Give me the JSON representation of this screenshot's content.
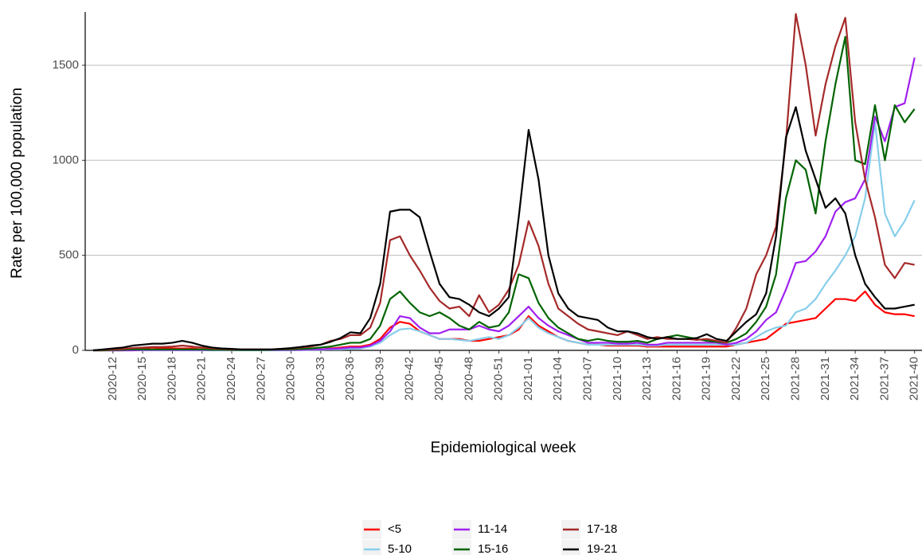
{
  "chart_data": {
    "type": "line",
    "x_label": "Epidemiological week",
    "y_label": "Rate per 100,000 population",
    "categories": [
      null,
      null,
      "2020-12",
      null,
      null,
      "2020-15",
      null,
      null,
      "2020-18",
      null,
      null,
      "2020-21",
      null,
      null,
      "2020-24",
      null,
      null,
      "2020-27",
      null,
      null,
      "2020-30",
      null,
      null,
      "2020-33",
      null,
      null,
      "2020-36",
      null,
      null,
      "2020-39",
      null,
      null,
      "2020-42",
      null,
      null,
      "2020-45",
      null,
      null,
      "2020-48",
      null,
      null,
      "2020-51",
      null,
      null,
      "2021-01",
      null,
      null,
      "2021-04",
      null,
      null,
      "2021-07",
      null,
      null,
      "2021-10",
      null,
      null,
      "2021-13",
      null,
      null,
      "2021-16",
      null,
      null,
      "2021-19",
      null,
      null,
      "2021-22",
      null,
      null,
      "2021-25",
      null,
      null,
      "2021-28",
      null,
      null,
      "2021-31",
      null,
      null,
      "2021-34",
      null,
      null,
      "2021-37",
      null,
      null,
      "2021-40"
    ],
    "ylim": [
      0,
      1770
    ],
    "yticks": [
      0,
      500,
      1000,
      1500
    ],
    "grid": true,
    "legend": "bottom",
    "series": [
      {
        "name": "<5",
        "color": "#ff0000",
        "values": [
          0,
          0,
          0,
          0,
          5,
          10,
          15,
          10,
          10,
          10,
          10,
          5,
          5,
          3,
          2,
          2,
          2,
          2,
          2,
          2,
          2,
          3,
          5,
          5,
          10,
          15,
          20,
          20,
          30,
          60,
          120,
          150,
          140,
          100,
          80,
          60,
          60,
          60,
          50,
          50,
          60,
          70,
          80,
          110,
          180,
          130,
          100,
          70,
          50,
          40,
          30,
          30,
          25,
          25,
          25,
          25,
          20,
          20,
          20,
          20,
          20,
          20,
          20,
          20,
          20,
          30,
          40,
          50,
          60,
          100,
          140,
          150,
          160,
          170,
          220,
          270,
          270,
          260,
          310,
          240,
          200,
          190,
          190,
          180
        ]
      },
      {
        "name": "5-10",
        "color": "#87ceeb",
        "values": [
          0,
          0,
          0,
          0,
          0,
          0,
          0,
          0,
          0,
          0,
          0,
          0,
          0,
          0,
          0,
          0,
          0,
          0,
          0,
          0,
          0,
          2,
          3,
          3,
          5,
          5,
          8,
          10,
          20,
          40,
          80,
          110,
          115,
          100,
          80,
          60,
          60,
          55,
          50,
          60,
          70,
          60,
          80,
          120,
          170,
          120,
          90,
          70,
          50,
          40,
          30,
          30,
          30,
          30,
          30,
          30,
          25,
          25,
          30,
          30,
          30,
          30,
          30,
          30,
          30,
          30,
          40,
          70,
          100,
          120,
          130,
          200,
          220,
          270,
          350,
          420,
          500,
          600,
          800,
          1200,
          720,
          600,
          680,
          790
        ]
      },
      {
        "name": "11-14",
        "color": "#a020f0",
        "values": [
          0,
          0,
          0,
          0,
          0,
          2,
          2,
          2,
          2,
          2,
          2,
          2,
          2,
          2,
          2,
          2,
          2,
          2,
          2,
          2,
          2,
          3,
          5,
          5,
          8,
          10,
          15,
          15,
          25,
          50,
          100,
          180,
          170,
          120,
          90,
          90,
          110,
          110,
          110,
          130,
          110,
          100,
          130,
          180,
          230,
          170,
          130,
          100,
          80,
          60,
          40,
          40,
          40,
          35,
          35,
          40,
          30,
          30,
          40,
          40,
          40,
          40,
          40,
          40,
          30,
          40,
          60,
          100,
          160,
          200,
          320,
          460,
          470,
          520,
          600,
          730,
          780,
          800,
          900,
          1230,
          1100,
          1280,
          1300,
          1540
        ]
      },
      {
        "name": "15-16",
        "color": "#006400",
        "values": [
          0,
          0,
          2,
          3,
          5,
          5,
          5,
          5,
          5,
          5,
          5,
          5,
          3,
          3,
          2,
          2,
          2,
          2,
          3,
          5,
          5,
          8,
          10,
          15,
          20,
          30,
          40,
          40,
          60,
          130,
          270,
          310,
          250,
          200,
          180,
          200,
          170,
          130,
          110,
          150,
          120,
          130,
          200,
          400,
          380,
          250,
          170,
          120,
          90,
          60,
          50,
          60,
          50,
          45,
          45,
          50,
          40,
          60,
          70,
          80,
          70,
          60,
          50,
          45,
          40,
          60,
          90,
          150,
          230,
          400,
          800,
          1000,
          950,
          720,
          1100,
          1400,
          1650,
          1000,
          980,
          1290,
          1000,
          1290,
          1200,
          1270
        ]
      },
      {
        "name": "17-18",
        "color": "#a52a2a",
        "values": [
          0,
          3,
          5,
          8,
          12,
          15,
          18,
          18,
          20,
          25,
          20,
          15,
          10,
          8,
          5,
          5,
          5,
          5,
          5,
          8,
          10,
          15,
          20,
          30,
          50,
          60,
          80,
          80,
          120,
          250,
          580,
          600,
          500,
          420,
          330,
          260,
          220,
          230,
          180,
          290,
          200,
          240,
          320,
          450,
          680,
          550,
          350,
          220,
          180,
          140,
          110,
          100,
          90,
          80,
          100,
          80,
          60,
          70,
          60,
          60,
          60,
          55,
          60,
          50,
          40,
          120,
          220,
          400,
          500,
          650,
          1100,
          1770,
          1500,
          1130,
          1400,
          1600,
          1750,
          1200,
          900,
          700,
          450,
          380,
          460,
          450
        ]
      },
      {
        "name": "19-21",
        "color": "#000000",
        "values": [
          0,
          5,
          10,
          15,
          25,
          30,
          35,
          35,
          40,
          50,
          40,
          25,
          15,
          10,
          8,
          5,
          5,
          5,
          5,
          8,
          12,
          18,
          25,
          30,
          45,
          65,
          95,
          90,
          170,
          350,
          730,
          740,
          740,
          700,
          520,
          350,
          280,
          270,
          240,
          200,
          180,
          220,
          280,
          700,
          1160,
          900,
          500,
          300,
          220,
          180,
          170,
          160,
          120,
          100,
          100,
          90,
          70,
          60,
          70,
          60,
          60,
          65,
          85,
          60,
          50,
          100,
          150,
          190,
          300,
          600,
          1120,
          1280,
          1050,
          900,
          750,
          800,
          720,
          500,
          350,
          280,
          220,
          220,
          230,
          240
        ]
      }
    ]
  }
}
